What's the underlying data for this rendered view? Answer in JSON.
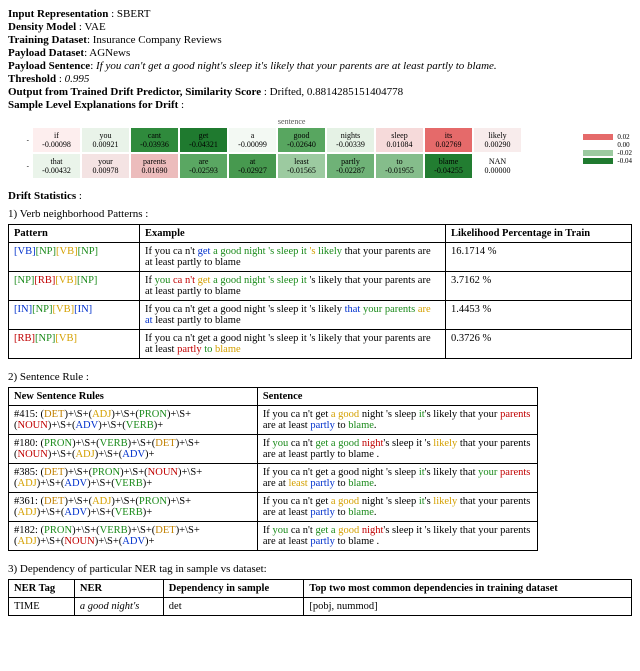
{
  "meta": {
    "input_rep_label": "Input Representation",
    "input_rep_value": "SBERT",
    "density_label": "Density Model",
    "density_value": "VAE",
    "train_ds_label": "Training Dataset",
    "train_ds_value": "Insurance Company Reviews",
    "payload_ds_label": "Payload Dataset",
    "payload_ds_value": "AGNews",
    "payload_sent_label": "Payload Sentence",
    "payload_sent_value": "If you can't get a good night's sleep it's likely that your parents are at least partly to blame.",
    "threshold_label": "Threshold",
    "threshold_value": "0.995",
    "output_label": "Output from Trained Drift Predictor, Similarity Score",
    "output_value": "Drifted, 0.8814285151404778",
    "sample_expl_label": "Sample Level Explanations for Drift"
  },
  "heatmap": {
    "title": "sentence",
    "row_labels": [
      "-",
      "-"
    ],
    "cells": [
      [
        {
          "t": "if",
          "v": "-0.00098",
          "bg": "#fdeeee"
        },
        {
          "t": "you",
          "v": "0.00921",
          "bg": "#e9f3e9"
        },
        {
          "t": "cant",
          "v": "-0.03936",
          "bg": "#2f8a3c"
        },
        {
          "t": "get",
          "v": "-0.04321",
          "bg": "#1f7a2f"
        },
        {
          "t": "a",
          "v": "-0.00099",
          "bg": "#f3f9f3"
        },
        {
          "t": "good",
          "v": "-0.02640",
          "bg": "#58a660"
        },
        {
          "t": "nights",
          "v": "-0.00339",
          "bg": "#e5f2e5"
        },
        {
          "t": "sleep",
          "v": "0.01084",
          "bg": "#f6dada"
        },
        {
          "t": "its",
          "v": "0.02769",
          "bg": "#e56a6a"
        },
        {
          "t": "likely",
          "v": "0.00290",
          "bg": "#f8ecec"
        }
      ],
      [
        {
          "t": "that",
          "v": "-0.00432",
          "bg": "#eaf4ea"
        },
        {
          "t": "your",
          "v": "0.00978",
          "bg": "#f4e3e3"
        },
        {
          "t": "parents",
          "v": "0.01690",
          "bg": "#ecbcbc"
        },
        {
          "t": "are",
          "v": "-0.02593",
          "bg": "#5aa762"
        },
        {
          "t": "at",
          "v": "-0.02927",
          "bg": "#47994f"
        },
        {
          "t": "least",
          "v": "-0.01565",
          "bg": "#9ccaa0"
        },
        {
          "t": "partly",
          "v": "-0.02287",
          "bg": "#6fb277"
        },
        {
          "t": "to",
          "v": "-0.01955",
          "bg": "#85bd8b"
        },
        {
          "t": "blame",
          "v": "-0.04255",
          "bg": "#227d31"
        },
        {
          "t": "NAN",
          "v": "0.00000",
          "bg": "#ffffff"
        }
      ]
    ],
    "legend": [
      {
        "label": "0.02",
        "bg": "#e56a6a"
      },
      {
        "label": "0.00",
        "bg": "#ffffff"
      },
      {
        "label": "-0.02",
        "bg": "#9ccaa0"
      },
      {
        "label": "-0.04",
        "bg": "#1f7a2f"
      }
    ]
  },
  "drift_stats_label": "Drift Statistics",
  "verb_section_label": "1) Verb neighborhood Patterns :",
  "verb_table": {
    "headers": [
      "Pattern",
      "Example",
      "Likelihood Percentage in Train"
    ],
    "rows": [
      {
        "pattern_tokens": [
          [
            "VB",
            "tk-IN"
          ],
          [
            "NP",
            "tk-NP"
          ],
          [
            "VB",
            "tk-VB"
          ],
          [
            "NP",
            "tk-NP"
          ]
        ],
        "example_html": "If you ca n't <span class='b'>get</span> <span class='g'>a good night 's sleep it</span> <span class='y'>'s</span> <span class='g'>likely</span> that your parents are at least partly to blame",
        "likelihood": "16.1714 %"
      },
      {
        "pattern_tokens": [
          [
            "NP",
            "tk-NP"
          ],
          [
            "RB",
            "tk-RB"
          ],
          [
            "VB",
            "tk-VB"
          ],
          [
            "NP",
            "tk-NP"
          ]
        ],
        "example_html": "If <span class='g'>you</span> <span class='r'>ca n't</span> <span class='y'>get</span> <span class='g'>a good night 's sleep it</span> 's likely that your parents are at least partly to blame",
        "likelihood": "3.7162 %"
      },
      {
        "pattern_tokens": [
          [
            "IN",
            "tk-IN"
          ],
          [
            "NP",
            "tk-NP"
          ],
          [
            "VB",
            "tk-VB"
          ],
          [
            "IN",
            "tk-IN"
          ]
        ],
        "example_html": "If you ca n't get a good night 's sleep it 's likely <span class='b'>that</span> <span class='g'>your parents</span> <span class='y'>are</span> <span class='b'>at</span> least partly to blame",
        "likelihood": "1.4453 %"
      },
      {
        "pattern_tokens": [
          [
            "RB",
            "tk-RB"
          ],
          [
            "NP",
            "tk-NP"
          ],
          [
            "VB",
            "tk-VB"
          ]
        ],
        "example_html": "If you ca n't get a good night 's sleep it 's likely that your parents are at least <span class='r'>partly</span> <span class='g'>to</span> <span class='y'>blame</span>",
        "likelihood": "0.3726 %"
      }
    ]
  },
  "sentence_rule_label": "2) Sentence Rule :",
  "rule_table": {
    "headers": [
      "New Sentence Rules",
      "Sentence"
    ],
    "rows": [
      {
        "rule_html": "#415: (<span class='det'>DET</span>)+\\S+(<span class='adj'>ADJ</span>)+\\S+(<span class='pron'>PRON</span>)+\\S+<br>(<span class='noun'>NOUN</span>)+\\S+(<span class='adv'>ADV</span>)+\\S+(<span class='verb'>VERB</span>)+",
        "sent_html": "If you ca n't get <span class='y'>a good</span> night 's sleep <span class='g'>it</span>'s likely that your <span class='r'>parents</span> are at least <span class='b'>partly</span> to <span class='g'>blame</span>."
      },
      {
        "rule_html": "#180: (<span class='pron'>PRON</span>)+\\S+(<span class='verb'>VERB</span>)+\\S+(<span class='det'>DET</span>)+\\S+<br>(<span class='noun'>NOUN</span>)+\\S+(<span class='adj'>ADJ</span>)+\\S+(<span class='adv'>ADV</span>)+",
        "sent_html": "If <span class='g'>you</span> ca n't <span class='g'>get a good</span> <span class='r'>night</span>'s sleep it 's <span class='y'>likely</span> that your parents are at least partly to blame ."
      },
      {
        "rule_html": "#385: (<span class='det'>DET</span>)+\\S+(<span class='pron'>PRON</span>)+\\S+(<span class='noun'>NOUN</span>)+\\S+<br>(<span class='adj'>ADJ</span>)+\\S+(<span class='adv'>ADV</span>)+\\S+(<span class='verb'>VERB</span>)+",
        "sent_html": "If you ca n't get a good night 's sleep <span class='g'>it</span>'s likely that <span class='g'>your</span> <span class='r'>parents</span> are at <span class='y'>least</span> <span class='b'>partly</span> to <span class='g'>blame</span>."
      },
      {
        "rule_html": "#361: (<span class='det'>DET</span>)+\\S+(<span class='adj'>ADJ</span>)+\\S+(<span class='pron'>PRON</span>)+\\S+<br>(<span class='adj'>ADJ</span>)+\\S+(<span class='adv'>ADV</span>)+\\S+(<span class='verb'>VERB</span>)+",
        "sent_html": "If you ca n't get <span class='y'>a good</span> night 's sleep <span class='g'>it</span>'s <span class='y'>likely</span> that your parents are at least <span class='b'>partly</span> to <span class='g'>blame</span>."
      },
      {
        "rule_html": "#182: (<span class='pron'>PRON</span>)+\\S+(<span class='verb'>VERB</span>)+\\S+(<span class='det'>DET</span>)+\\S+<br>(<span class='adj'>ADJ</span>)+\\S+(<span class='noun'>NOUN</span>)+\\S+(<span class='adv'>ADV</span>)+",
        "sent_html": "If <span class='g'>you</span> ca n't <span class='g'>get a</span> <span class='y'>good</span> <span class='r'>night</span>'s sleep it 's likely that your parents are at least <span class='b'>partly</span> to blame ."
      }
    ]
  },
  "ner_section_label": "3) Dependency of particular NER tag in sample vs dataset:",
  "ner_table": {
    "headers": [
      "NER Tag",
      "NER",
      "Dependency in sample",
      "Top two most common dependencies in training dataset"
    ],
    "rows": [
      {
        "tag": "TIME",
        "ner": "a good night's",
        "dep": "det",
        "top": "[pobj, nummod]"
      }
    ]
  }
}
